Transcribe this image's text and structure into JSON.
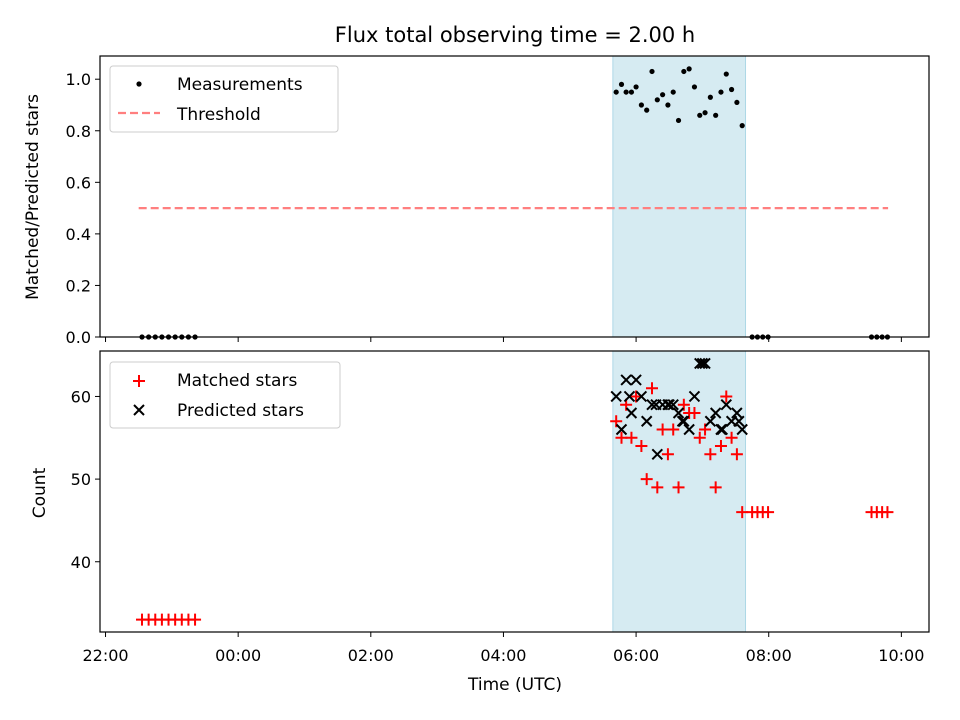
{
  "chart_data": [
    {
      "type": "scatter",
      "title": "Flux total observing time = 2.00 h",
      "xlabel": "",
      "ylabel": "Matched/Predicted stars",
      "xlim": [
        -2.0833,
        10.4167
      ],
      "ylim": [
        0.0,
        1.09
      ],
      "yticks": [
        {
          "v": 0.0,
          "label": "0.0"
        },
        {
          "v": 0.2,
          "label": "0.2"
        },
        {
          "v": 0.4,
          "label": "0.4"
        },
        {
          "v": 0.6,
          "label": "0.6"
        },
        {
          "v": 0.8,
          "label": "0.8"
        },
        {
          "v": 1.0,
          "label": "1.0"
        }
      ],
      "shaded_span": [
        5.65,
        7.65
      ],
      "threshold": {
        "x": [
          -1.5,
          9.8
        ],
        "y": 0.5
      },
      "legend": [
        "Measurements",
        "Threshold"
      ],
      "legend_loc": "upper left",
      "series": [
        {
          "name": "Measurements",
          "x": [
            -1.45,
            -1.35,
            -1.25,
            -1.15,
            -1.05,
            -0.95,
            -0.85,
            -0.75,
            -0.65,
            5.7,
            5.78,
            5.85,
            5.93,
            6.0,
            6.08,
            6.16,
            6.24,
            6.32,
            6.4,
            6.48,
            6.56,
            6.64,
            6.72,
            6.8,
            6.88,
            6.96,
            7.04,
            7.12,
            7.2,
            7.28,
            7.36,
            7.44,
            7.52,
            7.6,
            7.75,
            7.83,
            7.91,
            7.99,
            9.55,
            9.63,
            9.71,
            9.79
          ],
          "y": [
            0,
            0,
            0,
            0,
            0,
            0,
            0,
            0,
            0,
            0.95,
            0.98,
            0.95,
            0.95,
            0.97,
            0.9,
            0.88,
            1.03,
            0.92,
            0.94,
            0.9,
            0.95,
            0.84,
            1.03,
            1.04,
            0.97,
            0.86,
            0.87,
            0.93,
            0.86,
            0.95,
            1.02,
            0.96,
            0.91,
            0.82,
            0,
            0,
            0,
            0,
            0,
            0,
            0,
            0
          ]
        }
      ]
    },
    {
      "type": "scatter",
      "title": "",
      "xlabel": "Time (UTC)",
      "ylabel": "Count",
      "xlim": [
        -2.0833,
        10.4167
      ],
      "ylim": [
        31.5,
        65.5
      ],
      "yticks": [
        {
          "v": 40,
          "label": "40"
        },
        {
          "v": 50,
          "label": "50"
        },
        {
          "v": 60,
          "label": "60"
        }
      ],
      "xticks": [
        {
          "v": -2,
          "label": "22:00"
        },
        {
          "v": 0,
          "label": "00:00"
        },
        {
          "v": 2,
          "label": "02:00"
        },
        {
          "v": 4,
          "label": "04:00"
        },
        {
          "v": 6,
          "label": "06:00"
        },
        {
          "v": 8,
          "label": "08:00"
        },
        {
          "v": 10,
          "label": "10:00"
        }
      ],
      "shaded_span": [
        5.65,
        7.65
      ],
      "legend": [
        "Matched stars",
        "Predicted stars"
      ],
      "legend_loc": "upper left",
      "series": [
        {
          "name": "Matched stars",
          "marker": "plus",
          "color": "#ff0000",
          "x": [
            -1.45,
            -1.35,
            -1.25,
            -1.15,
            -1.05,
            -0.95,
            -0.85,
            -0.75,
            -0.65,
            5.7,
            5.78,
            5.85,
            5.93,
            6.0,
            6.08,
            6.16,
            6.24,
            6.32,
            6.4,
            6.48,
            6.56,
            6.64,
            6.72,
            6.8,
            6.88,
            6.96,
            7.04,
            7.12,
            7.2,
            7.28,
            7.36,
            7.44,
            7.52,
            7.6,
            7.75,
            7.83,
            7.91,
            7.99,
            9.55,
            9.63,
            9.71,
            9.79
          ],
          "y": [
            33,
            33,
            33,
            33,
            33,
            33,
            33,
            33,
            33,
            57,
            55,
            59,
            55,
            60,
            54,
            50,
            61,
            49,
            56,
            53,
            56,
            49,
            59,
            58,
            58,
            55,
            56,
            53,
            49,
            54,
            60,
            55,
            53,
            46,
            46,
            46,
            46,
            46,
            46,
            46,
            46,
            46
          ]
        },
        {
          "name": "Predicted stars",
          "marker": "x",
          "color": "#000000",
          "x": [
            5.7,
            5.78,
            5.85,
            5.93,
            6.0,
            6.08,
            6.16,
            6.24,
            6.32,
            6.4,
            6.48,
            6.56,
            6.64,
            6.72,
            6.8,
            6.88,
            6.96,
            7.04,
            7.12,
            7.2,
            7.28,
            7.36,
            7.44,
            7.52,
            7.6,
            5.9,
            6.3,
            6.5,
            6.7,
            7.0,
            7.3,
            7.55
          ],
          "y": [
            60,
            56,
            62,
            58,
            62,
            60,
            57,
            59,
            53,
            59,
            59,
            59,
            58,
            57,
            56,
            60,
            64,
            64,
            57,
            58,
            56,
            59,
            57,
            58,
            56,
            60,
            59,
            59,
            57,
            64,
            56,
            57
          ]
        }
      ]
    }
  ]
}
